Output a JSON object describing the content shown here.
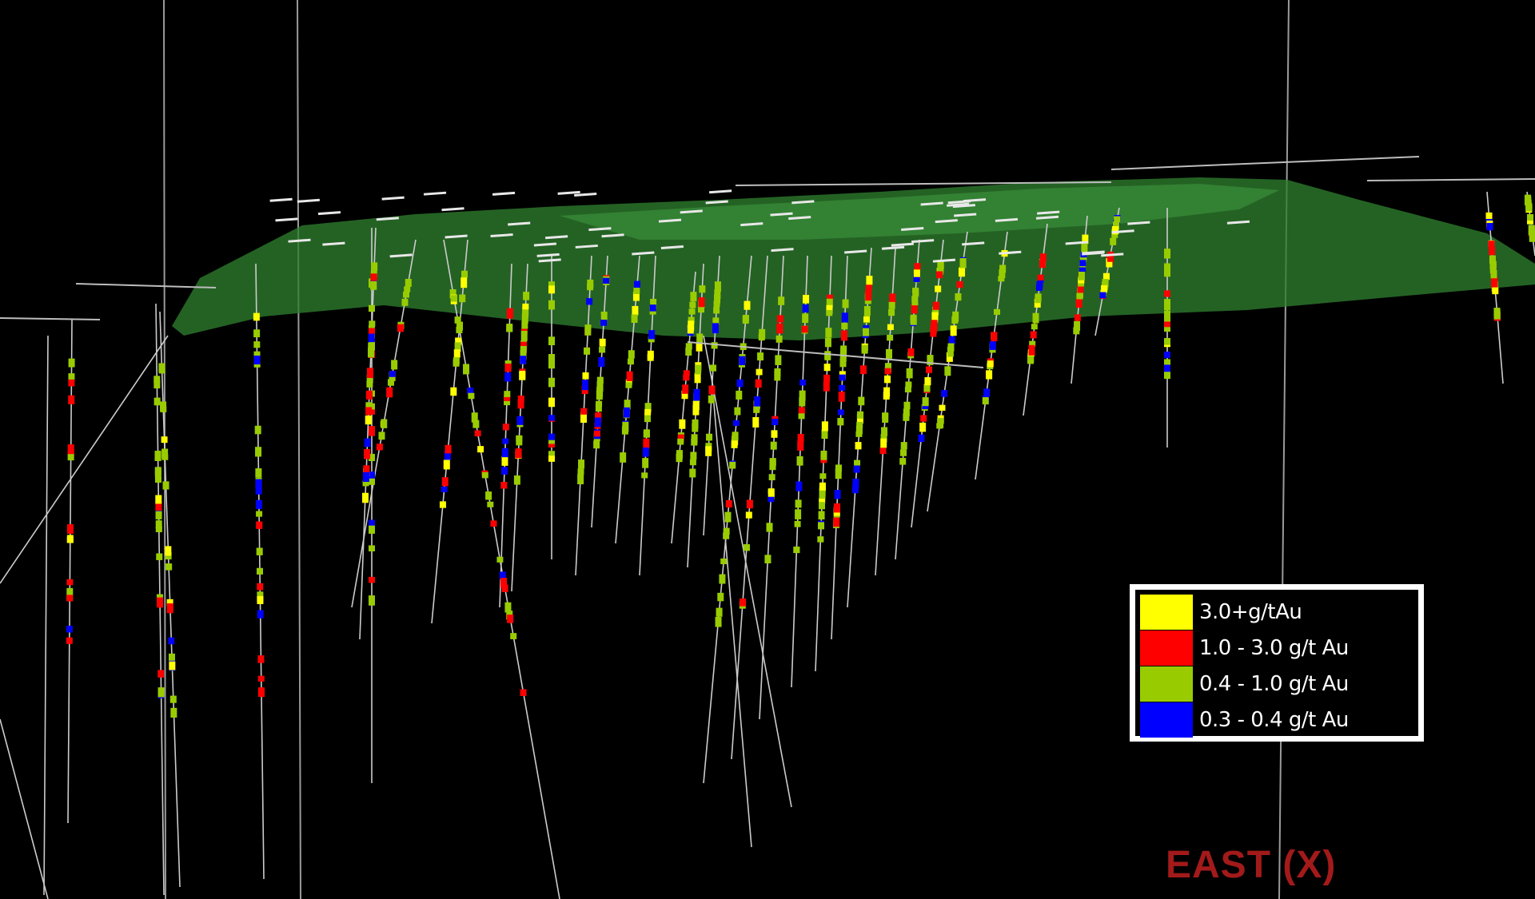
{
  "legend": {
    "items": [
      {
        "label": "3.0+g/tAu",
        "color": "#ffff00"
      },
      {
        "label": "1.0 - 3.0 g/t Au",
        "color": "#ff0000"
      },
      {
        "label": "0.4 - 1.0 g/t Au",
        "color": "#99cc00"
      },
      {
        "label": "0.3 - 0.4 g/t Au",
        "color": "#0000ff"
      }
    ]
  },
  "axis": {
    "label": "EAST (X)",
    "color": "#c01f1f"
  },
  "colors": {
    "background": "#000000",
    "surface": "#2e7d2e",
    "drillhole_trace": "#cccccc"
  }
}
